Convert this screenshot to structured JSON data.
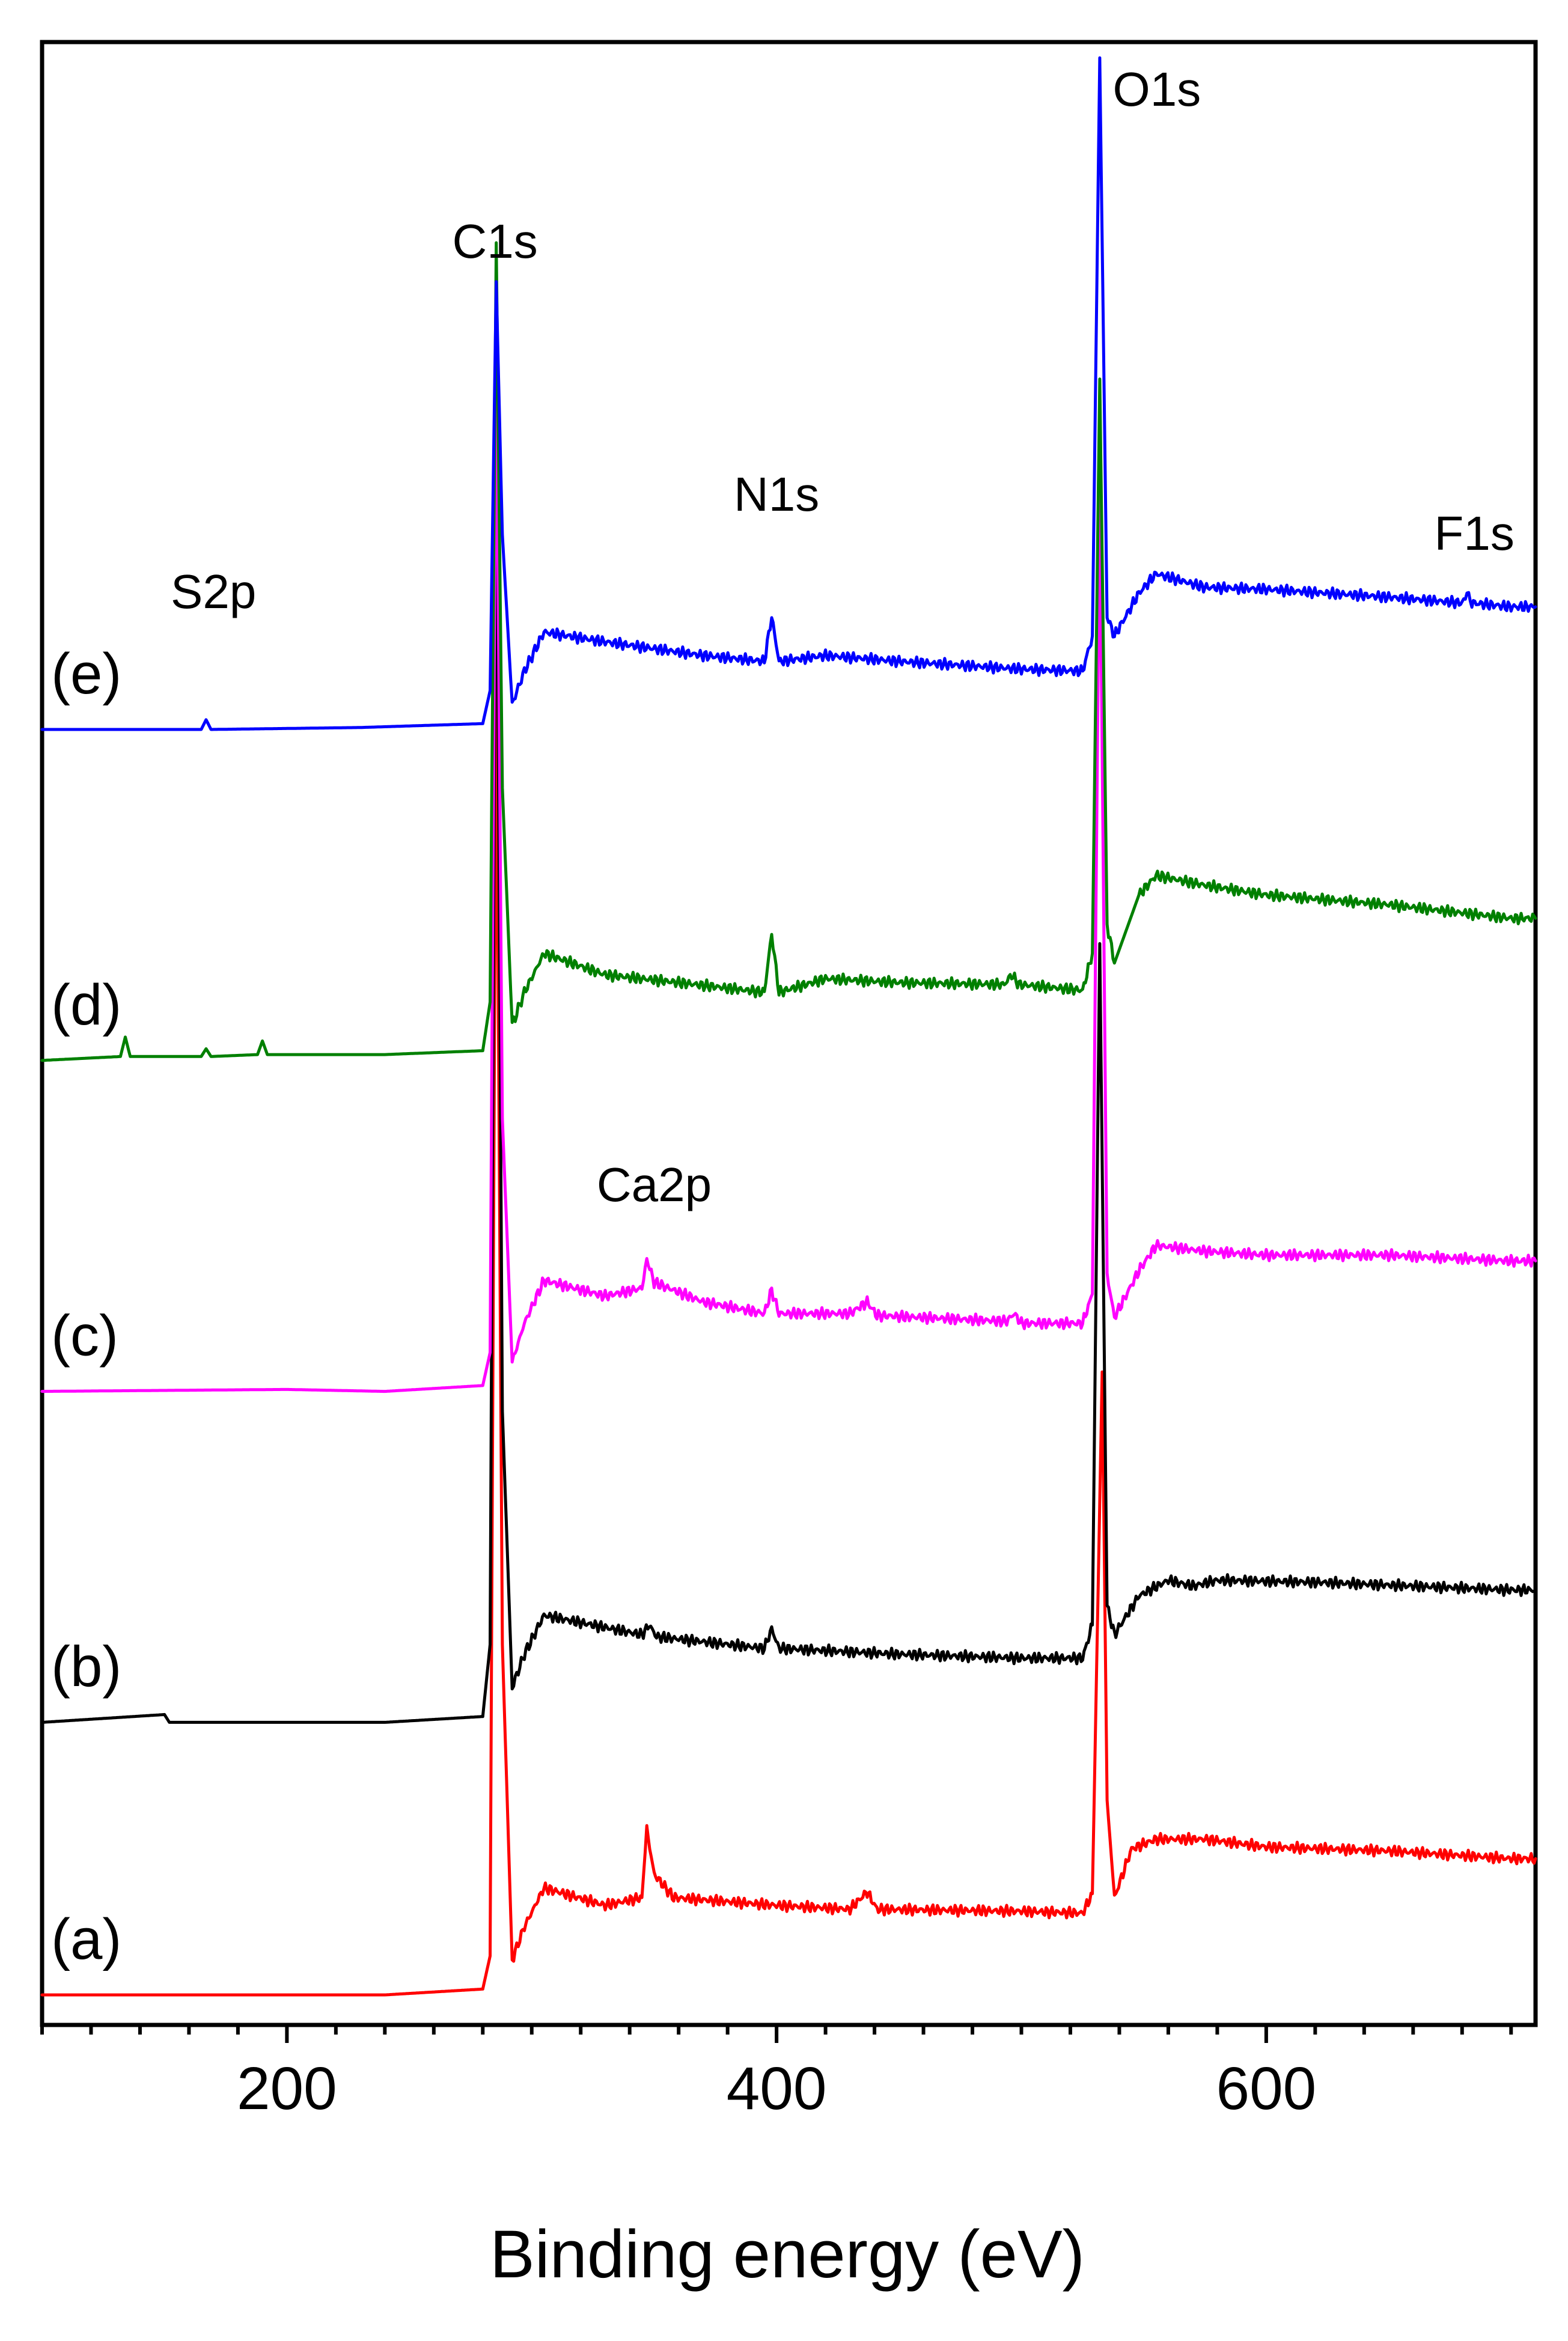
{
  "chart_data": {
    "type": "line",
    "title": "",
    "xlabel": "Binding energy (eV)",
    "ylabel": "",
    "xlim": [
      100,
      710
    ],
    "xticks": [
      200,
      400,
      600
    ],
    "xtick_minor_step": 20,
    "y_scale": "arbitrary units, spectra vertically offset",
    "ylim": [
      0,
      100
    ],
    "grid": false,
    "legend": "none",
    "series": [
      {
        "label": "(a)",
        "color": "#ff0000",
        "baseline": 0,
        "points": [
          [
            100,
            0
          ],
          [
            240,
            0
          ],
          [
            280,
            0.3
          ],
          [
            283,
            2
          ],
          [
            285.5,
            68
          ],
          [
            288,
            18
          ],
          [
            292,
            1.8
          ],
          [
            297,
            3.5
          ],
          [
            305,
            5.5
          ],
          [
            330,
            4.6
          ],
          [
            345,
            5.0
          ],
          [
            347,
            8.5
          ],
          [
            350,
            6.2
          ],
          [
            358,
            5.0
          ],
          [
            400,
            4.6
          ],
          [
            430,
            4.4
          ],
          [
            437,
            5.3
          ],
          [
            441,
            4.4
          ],
          [
            500,
            4.3
          ],
          [
            525,
            4.2
          ],
          [
            529,
            5.2
          ],
          [
            533,
            32
          ],
          [
            535,
            10
          ],
          [
            538,
            5.0
          ],
          [
            545,
            7.5
          ],
          [
            555,
            8.0
          ],
          [
            575,
            8.0
          ],
          [
            600,
            7.6
          ],
          [
            650,
            7.4
          ],
          [
            700,
            7.0
          ],
          [
            710,
            7.0
          ]
        ]
      },
      {
        "label": "(b)",
        "color": "#000000",
        "baseline": 14,
        "points": [
          [
            100,
            14
          ],
          [
            150,
            14.4
          ],
          [
            152,
            14
          ],
          [
            240,
            14
          ],
          [
            280,
            14.3
          ],
          [
            283,
            18
          ],
          [
            285.5,
            82
          ],
          [
            288,
            30
          ],
          [
            292,
            15.8
          ],
          [
            297,
            17.5
          ],
          [
            305,
            19.5
          ],
          [
            345,
            18.5
          ],
          [
            348,
            19.0
          ],
          [
            351,
            18.4
          ],
          [
            395,
            17.8
          ],
          [
            398,
            18.8
          ],
          [
            401,
            17.8
          ],
          [
            450,
            17.5
          ],
          [
            500,
            17.3
          ],
          [
            525,
            17.3
          ],
          [
            529,
            19.0
          ],
          [
            532,
            54
          ],
          [
            535,
            20
          ],
          [
            538,
            18.5
          ],
          [
            548,
            20.5
          ],
          [
            560,
            21.3
          ],
          [
            570,
            21.0
          ],
          [
            580,
            21.3
          ],
          [
            620,
            21.2
          ],
          [
            660,
            21.0
          ],
          [
            700,
            20.8
          ],
          [
            710,
            20.8
          ]
        ]
      },
      {
        "label": "(c)",
        "color": "#ff00ff",
        "baseline": 31,
        "points": [
          [
            100,
            31
          ],
          [
            200,
            31.1
          ],
          [
            240,
            31
          ],
          [
            280,
            31.3
          ],
          [
            283,
            33
          ],
          [
            285.5,
            85
          ],
          [
            288,
            45
          ],
          [
            292,
            32.5
          ],
          [
            297,
            34.5
          ],
          [
            305,
            36.7
          ],
          [
            330,
            35.9
          ],
          [
            345,
            36.3
          ],
          [
            347,
            37.8
          ],
          [
            350,
            36.6
          ],
          [
            370,
            35.6
          ],
          [
            395,
            35.0
          ],
          [
            398,
            36.2
          ],
          [
            401,
            35.0
          ],
          [
            430,
            35.0
          ],
          [
            437,
            35.6
          ],
          [
            441,
            34.9
          ],
          [
            494,
            34.6
          ],
          [
            497,
            35.0
          ],
          [
            500,
            34.5
          ],
          [
            525,
            34.5
          ],
          [
            529,
            36.0
          ],
          [
            532,
            77
          ],
          [
            535,
            37.0
          ],
          [
            538,
            34.8
          ],
          [
            548,
            37.2
          ],
          [
            555,
            38.5
          ],
          [
            575,
            38.2
          ],
          [
            600,
            38.0
          ],
          [
            650,
            38.0
          ],
          [
            700,
            37.7
          ],
          [
            710,
            37.7
          ]
        ]
      },
      {
        "label": "(d)",
        "color": "#008000",
        "baseline": 48,
        "points": [
          [
            100,
            48
          ],
          [
            132,
            48.2
          ],
          [
            134,
            49.2
          ],
          [
            136,
            48.2
          ],
          [
            165,
            48.2
          ],
          [
            167,
            48.6
          ],
          [
            169,
            48.2
          ],
          [
            188,
            48.3
          ],
          [
            190,
            49.0
          ],
          [
            192,
            48.3
          ],
          [
            240,
            48.3
          ],
          [
            280,
            48.5
          ],
          [
            283,
            51
          ],
          [
            285.5,
            90
          ],
          [
            288,
            62
          ],
          [
            292,
            49.8
          ],
          [
            297,
            51.5
          ],
          [
            305,
            53.5
          ],
          [
            330,
            52.4
          ],
          [
            360,
            52.0
          ],
          [
            395,
            51.5
          ],
          [
            398,
            54.5
          ],
          [
            401,
            51.5
          ],
          [
            420,
            52.2
          ],
          [
            450,
            52.0
          ],
          [
            493,
            51.9
          ],
          [
            496,
            52.4
          ],
          [
            499,
            51.9
          ],
          [
            525,
            51.6
          ],
          [
            529,
            53.5
          ],
          [
            532,
            83
          ],
          [
            535,
            55
          ],
          [
            538,
            53.0
          ],
          [
            548,
            56.5
          ],
          [
            555,
            57.5
          ],
          [
            575,
            57.0
          ],
          [
            600,
            56.5
          ],
          [
            650,
            56.0
          ],
          [
            700,
            55.3
          ],
          [
            710,
            55.3
          ]
        ]
      },
      {
        "label": "(e)",
        "color": "#0000ff",
        "baseline": 65,
        "points": [
          [
            100,
            65
          ],
          [
            165,
            65
          ],
          [
            167,
            65.5
          ],
          [
            169,
            65
          ],
          [
            230,
            65.1
          ],
          [
            280,
            65.3
          ],
          [
            283,
            67
          ],
          [
            285.5,
            88
          ],
          [
            288,
            75
          ],
          [
            292,
            66.3
          ],
          [
            297,
            68.0
          ],
          [
            305,
            70.0
          ],
          [
            330,
            69.5
          ],
          [
            370,
            68.8
          ],
          [
            395,
            68.5
          ],
          [
            398,
            70.8
          ],
          [
            401,
            68.5
          ],
          [
            420,
            68.8
          ],
          [
            450,
            68.5
          ],
          [
            500,
            68.1
          ],
          [
            525,
            68.0
          ],
          [
            529,
            69.8
          ],
          [
            532,
            99.5
          ],
          [
            535,
            70.8
          ],
          [
            538,
            69.8
          ],
          [
            548,
            72.0
          ],
          [
            555,
            73.0
          ],
          [
            575,
            72.3
          ],
          [
            600,
            72.2
          ],
          [
            650,
            71.8
          ],
          [
            680,
            71.5
          ],
          [
            682,
            72.0
          ],
          [
            684,
            71.5
          ],
          [
            700,
            71.3
          ],
          [
            710,
            71.3
          ]
        ]
      }
    ],
    "annotations": [
      {
        "text": "S2p",
        "x": 170,
        "y": 70
      },
      {
        "text": "C1s",
        "x": 285,
        "y": 88
      },
      {
        "text": "N1s",
        "x": 400,
        "y": 75
      },
      {
        "text": "O1s",
        "x": 532,
        "y": 99.5
      },
      {
        "text": "F1s",
        "x": 685,
        "y": 73
      },
      {
        "text": "Ca2p",
        "x": 350,
        "y": 40
      }
    ]
  }
}
